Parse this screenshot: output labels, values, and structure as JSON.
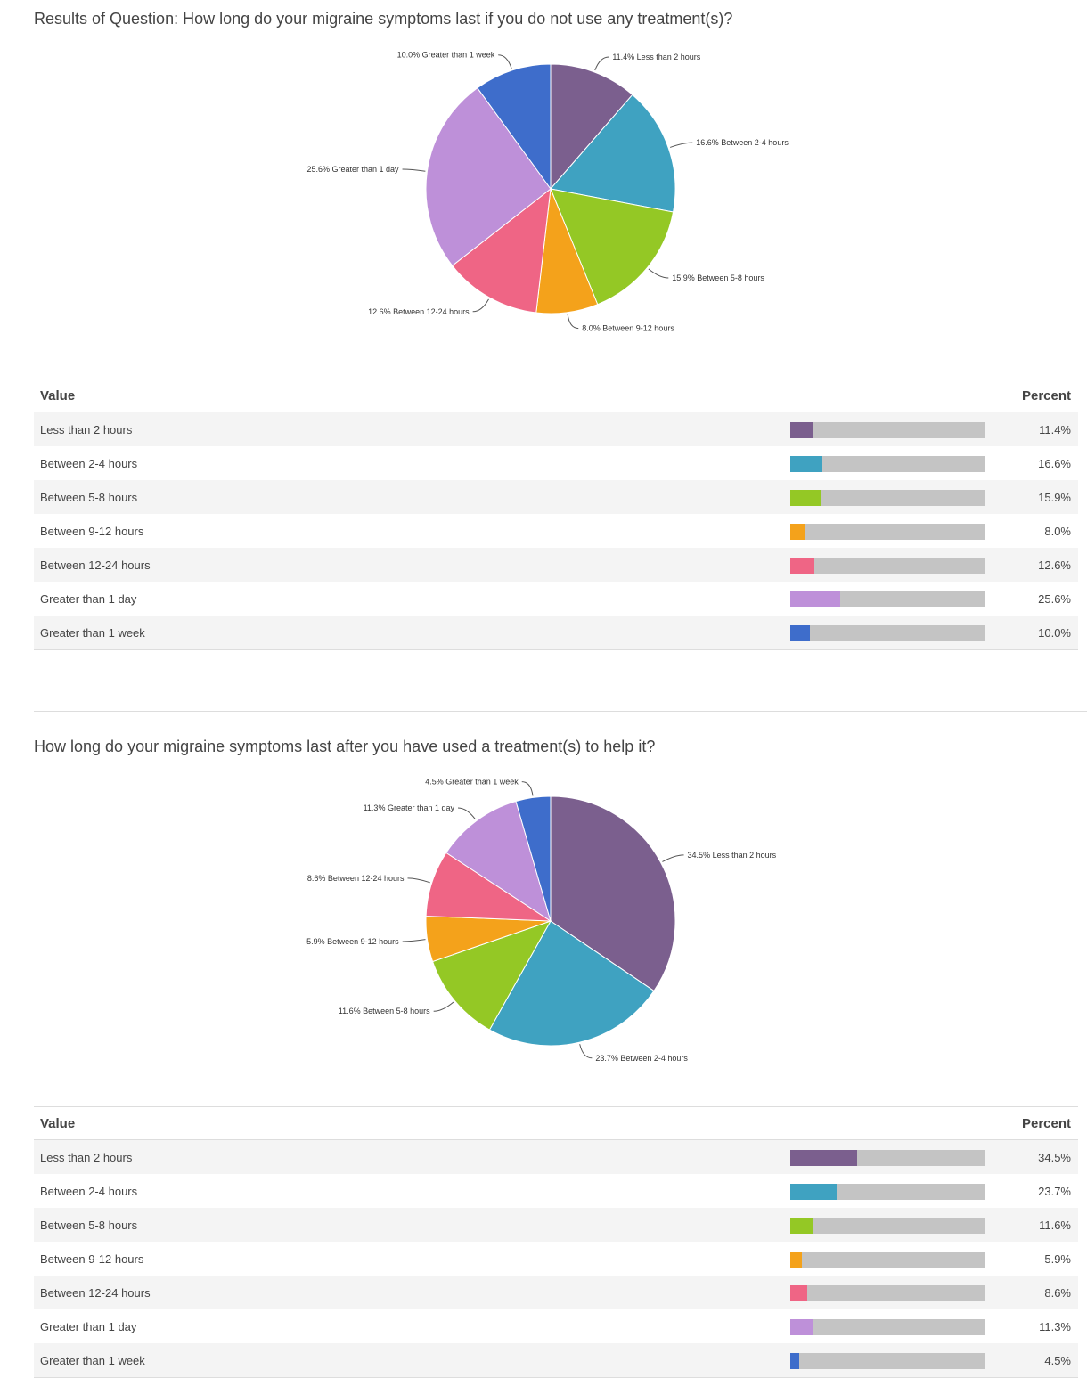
{
  "colors": [
    "#7b5f8e",
    "#3fa2c1",
    "#94c825",
    "#f4a21b",
    "#ef6585",
    "#be90d9",
    "#3e6dcb"
  ],
  "chart_data": [
    {
      "type": "pie",
      "title": "Results of Question: How long do your migraine symptoms last if you do not use any treatment(s)?",
      "value_header": "Value",
      "percent_header": "Percent",
      "categories": [
        "Less than 2 hours",
        "Between 2-4 hours",
        "Between 5-8 hours",
        "Between 9-12 hours",
        "Between 12-24 hours",
        "Greater than 1 day",
        "Greater than 1 week"
      ],
      "values": [
        11.4,
        16.6,
        15.9,
        8.0,
        12.6,
        25.6,
        10.0
      ],
      "labels": [
        "11.4% Less than 2 hours",
        "16.6% Between 2-4 hours",
        "15.9% Between 5-8 hours",
        "8.0% Between 9-12 hours",
        "12.6% Between 12-24 hours",
        "25.6% Greater than 1 day",
        "10.0% Greater than 1 week"
      ],
      "percent_text": [
        "11.4%",
        "16.6%",
        "15.9%",
        "8.0%",
        "12.6%",
        "25.6%",
        "10.0%"
      ]
    },
    {
      "type": "pie",
      "title": "How long do your migraine symptoms last after you have used a treatment(s) to help it?",
      "value_header": "Value",
      "percent_header": "Percent",
      "categories": [
        "Less than 2 hours",
        "Between 2-4 hours",
        "Between 5-8 hours",
        "Between 9-12 hours",
        "Between 12-24 hours",
        "Greater than 1 day",
        "Greater than 1 week"
      ],
      "values": [
        34.5,
        23.7,
        11.6,
        5.9,
        8.6,
        11.3,
        4.5
      ],
      "labels": [
        "34.5% Less than 2 hours",
        "23.7% Between 2-4 hours",
        "11.6% Between 5-8 hours",
        "5.9% Between 9-12 hours",
        "8.6% Between 12-24 hours",
        "11.3% Greater than 1 day",
        "4.5% Greater than 1 week"
      ],
      "percent_text": [
        "34.5%",
        "23.7%",
        "11.6%",
        "5.9%",
        "8.6%",
        "11.3%",
        "4.5%"
      ]
    }
  ]
}
